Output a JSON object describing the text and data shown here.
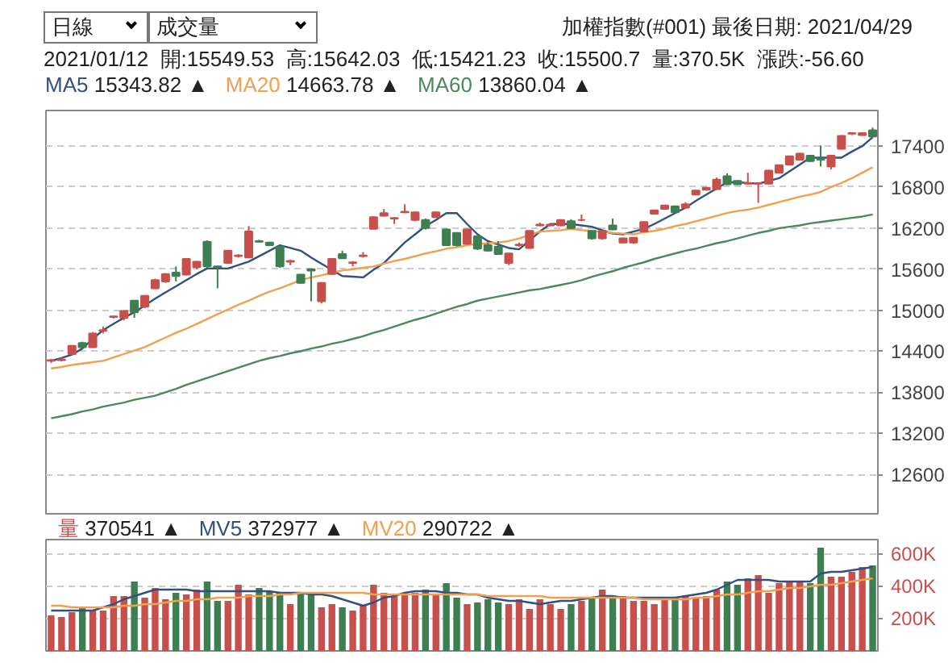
{
  "chart_data": [
    {
      "type": "candlestick",
      "categories": [
        null,
        null,
        null,
        null,
        null,
        null,
        null,
        null,
        null,
        null,
        null,
        null,
        null,
        null,
        null,
        null,
        null,
        null,
        null,
        null,
        null,
        null,
        null,
        null,
        null,
        null,
        null,
        null,
        null,
        null,
        null,
        null,
        null,
        null,
        null,
        null,
        null,
        null,
        null,
        null,
        null,
        null,
        null,
        null,
        null,
        null,
        null,
        null,
        null,
        null,
        null,
        null,
        null,
        null,
        null,
        null,
        null,
        null,
        null,
        null,
        null,
        null,
        null,
        null,
        null,
        null,
        null,
        null,
        null,
        null,
        null,
        null,
        null,
        null,
        null,
        null,
        null,
        null,
        null,
        null
      ],
      "ohlc": [
        [
          14260,
          14290,
          14230,
          14270
        ],
        [
          14270,
          14310,
          14250,
          14280
        ],
        [
          14360,
          14490,
          14350,
          14480
        ],
        [
          14520,
          14540,
          14440,
          14460
        ],
        [
          14460,
          14680,
          14450,
          14660
        ],
        [
          14700,
          14760,
          14660,
          14710
        ],
        [
          14900,
          14920,
          14880,
          14910
        ],
        [
          14890,
          15000,
          14850,
          14990
        ],
        [
          15140,
          15150,
          14890,
          14970
        ],
        [
          15050,
          15220,
          15030,
          15210
        ],
        [
          15320,
          15460,
          15310,
          15440
        ],
        [
          15420,
          15540,
          15400,
          15530
        ],
        [
          15550,
          15640,
          15420,
          15500
        ],
        [
          15520,
          15760,
          15510,
          15750
        ],
        [
          15630,
          15720,
          15600,
          15710
        ],
        [
          16000,
          16020,
          15620,
          15640
        ],
        [
          15640,
          15650,
          15320,
          15630
        ],
        [
          15690,
          15880,
          15680,
          15870
        ],
        [
          15790,
          15820,
          15770,
          15800
        ],
        [
          15770,
          16230,
          15760,
          16150
        ],
        [
          16010,
          16030,
          15990,
          16000
        ],
        [
          15990,
          16000,
          15940,
          15950
        ],
        [
          15930,
          15940,
          15620,
          15640
        ],
        [
          15710,
          15740,
          15660,
          15720
        ],
        [
          15520,
          15530,
          15390,
          15400
        ],
        [
          15600,
          15610,
          15130,
          15580
        ],
        [
          15130,
          15410,
          15100,
          15400
        ],
        [
          15530,
          15760,
          15520,
          15750
        ],
        [
          15820,
          15870,
          15750,
          15760
        ],
        [
          15690,
          15720,
          15640,
          15700
        ],
        [
          15790,
          15850,
          15770,
          15800
        ],
        [
          16190,
          16370,
          16180,
          16360
        ],
        [
          16380,
          16480,
          16370,
          16420
        ],
        [
          16340,
          16360,
          16260,
          16350
        ],
        [
          16430,
          16550,
          16420,
          16440
        ],
        [
          16320,
          16440,
          16300,
          16430
        ],
        [
          16320,
          16340,
          16180,
          16200
        ],
        [
          16360,
          16440,
          16350,
          16430
        ],
        [
          16180,
          16190,
          15940,
          15950
        ],
        [
          16130,
          16140,
          15930,
          15950
        ],
        [
          15970,
          16190,
          15960,
          16180
        ],
        [
          16080,
          16100,
          15880,
          15900
        ],
        [
          15950,
          15990,
          15860,
          15870
        ],
        [
          15930,
          16010,
          15810,
          15820
        ],
        [
          15690,
          15840,
          15660,
          15830
        ],
        [
          15950,
          15990,
          15930,
          15960
        ],
        [
          15910,
          16170,
          15900,
          16160
        ],
        [
          16240,
          16280,
          16230,
          16250
        ],
        [
          16240,
          16270,
          16230,
          16250
        ],
        [
          16240,
          16330,
          16230,
          16320
        ],
        [
          16300,
          16330,
          16190,
          16200
        ],
        [
          16320,
          16400,
          16300,
          16320
        ],
        [
          16160,
          16170,
          16030,
          16050
        ],
        [
          16050,
          16170,
          16030,
          16160
        ],
        [
          16240,
          16340,
          16170,
          16180
        ],
        [
          15990,
          16060,
          15980,
          16050
        ],
        [
          15990,
          16070,
          15970,
          16060
        ],
        [
          16150,
          16300,
          16140,
          16290
        ],
        [
          16410,
          16470,
          16400,
          16460
        ],
        [
          16480,
          16540,
          16470,
          16530
        ],
        [
          16520,
          16530,
          16420,
          16430
        ],
        [
          16500,
          16580,
          16490,
          16550
        ],
        [
          16690,
          16760,
          16680,
          16750
        ],
        [
          16760,
          16800,
          16750,
          16790
        ],
        [
          16770,
          16940,
          16760,
          16910
        ],
        [
          16960,
          17000,
          16830,
          16840
        ],
        [
          16890,
          16900,
          16830,
          16840
        ],
        [
          16850,
          17010,
          16840,
          16860
        ],
        [
          16850,
          16870,
          16570,
          16860
        ],
        [
          16850,
          17050,
          16840,
          17040
        ],
        [
          17010,
          17130,
          17000,
          17120
        ],
        [
          17130,
          17260,
          17120,
          17250
        ],
        [
          17200,
          17300,
          17190,
          17290
        ],
        [
          17260,
          17270,
          17170,
          17180
        ],
        [
          17210,
          17410,
          17100,
          17200
        ],
        [
          17100,
          17270,
          17060,
          17260
        ],
        [
          17360,
          17560,
          17350,
          17550
        ],
        [
          17580,
          17600,
          17560,
          17590
        ],
        [
          17560,
          17600,
          17550,
          17590
        ],
        [
          17630,
          17670,
          17530,
          17540
        ]
      ],
      "series": [
        {
          "name": "MA5",
          "type": "line",
          "color": "#34507f",
          "values": [
            14260,
            14300,
            14350,
            14440,
            14580,
            14710,
            14800,
            14890,
            14970,
            15070,
            15170,
            15260,
            15350,
            15440,
            15530,
            15610,
            15610,
            15610,
            15660,
            15710,
            15790,
            15870,
            15950,
            15910,
            15870,
            15770,
            15680,
            15590,
            15500,
            15490,
            15480,
            15590,
            15690,
            15840,
            15990,
            16110,
            16230,
            16320,
            16420,
            16420,
            16260,
            16110,
            16010,
            15960,
            15910,
            15890,
            16020,
            16150,
            16260,
            16260,
            16260,
            16240,
            16220,
            16170,
            16120,
            16110,
            16150,
            16190,
            16260,
            16340,
            16420,
            16500,
            16600,
            16690,
            16780,
            16870,
            16870,
            16860,
            16850,
            16890,
            16930,
            17030,
            17130,
            17230,
            17230,
            17230,
            17230,
            17320,
            17400,
            17530
          ]
        },
        {
          "name": "MA20",
          "type": "line",
          "color": "#f0a050",
          "values": [
            14150,
            14170,
            14200,
            14220,
            14240,
            14260,
            14310,
            14360,
            14410,
            14460,
            14530,
            14600,
            14670,
            14730,
            14800,
            14870,
            14940,
            15010,
            15080,
            15140,
            15210,
            15270,
            15320,
            15380,
            15440,
            15480,
            15510,
            15550,
            15580,
            15600,
            15620,
            15640,
            15680,
            15720,
            15750,
            15790,
            15830,
            15860,
            15900,
            15920,
            15950,
            15970,
            15980,
            15990,
            16010,
            16050,
            16100,
            16150,
            16160,
            16170,
            16190,
            16170,
            16160,
            16150,
            16130,
            16120,
            16110,
            16140,
            16160,
            16190,
            16230,
            16260,
            16300,
            16340,
            16380,
            16420,
            16450,
            16470,
            16500,
            16540,
            16580,
            16620,
            16660,
            16690,
            16730,
            16800,
            16860,
            16930,
            17010,
            17090
          ]
        },
        {
          "name": "MA60",
          "type": "line",
          "color": "#4a8a5a",
          "values": [
            13420,
            13450,
            13480,
            13520,
            13550,
            13590,
            13620,
            13650,
            13690,
            13720,
            13750,
            13800,
            13850,
            13910,
            13960,
            14010,
            14060,
            14110,
            14160,
            14210,
            14260,
            14300,
            14330,
            14370,
            14400,
            14440,
            14470,
            14510,
            14540,
            14580,
            14620,
            14670,
            14710,
            14760,
            14810,
            14860,
            14900,
            14950,
            15000,
            15050,
            15090,
            15140,
            15170,
            15200,
            15230,
            15260,
            15290,
            15310,
            15340,
            15370,
            15400,
            15440,
            15490,
            15530,
            15570,
            15620,
            15660,
            15700,
            15750,
            15790,
            15830,
            15870,
            15900,
            15940,
            15980,
            16010,
            16050,
            16090,
            16130,
            16160,
            16200,
            16220,
            16240,
            16270,
            16290,
            16310,
            16330,
            16350,
            16370,
            16400
          ]
        }
      ],
      "ylim": [
        12000,
        17920
      ],
      "yticks": [
        12600,
        13200,
        13800,
        14400,
        15000,
        15600,
        16200,
        16800,
        17400
      ],
      "grid": "y",
      "legend": "top left",
      "tick_labels": "y",
      "annotations": [
        "日線",
        "成交量",
        "加權指數(#001)   最後日期: 2021/04/29",
        "2021/01/12  開:15549.53  高:15642.03  低:15421.23  收:15500.7  量:370.5K  漲跌:-56.60",
        "15343.82 ▲",
        "14663.78 ▲",
        "13860.04 ▲"
      ]
    },
    {
      "type": "bar",
      "categories": [
        null,
        null,
        null,
        null,
        null,
        null,
        null,
        null,
        null,
        null,
        null,
        null,
        null,
        null,
        null,
        null,
        null,
        null,
        null,
        null,
        null,
        null,
        null,
        null,
        null,
        null,
        null,
        null,
        null,
        null,
        null,
        null,
        null,
        null,
        null,
        null,
        null,
        null,
        null,
        null,
        null,
        null,
        null,
        null,
        null,
        null,
        null,
        null,
        null,
        null,
        null,
        null,
        null,
        null,
        null,
        null,
        null,
        null,
        null,
        null,
        null,
        null,
        null,
        null,
        null,
        null,
        null,
        null,
        null,
        null,
        null,
        null,
        null,
        null,
        null,
        null,
        null,
        null,
        null,
        null
      ],
      "series": [
        {
          "name": "量",
          "type": "bar",
          "values": [
            220000,
            210000,
            240000,
            270000,
            250000,
            250000,
            340000,
            340000,
            430000,
            330000,
            390000,
            320000,
            360000,
            350000,
            380000,
            430000,
            310000,
            310000,
            410000,
            350000,
            390000,
            370000,
            360000,
            290000,
            360000,
            350000,
            270000,
            290000,
            270000,
            250000,
            280000,
            410000,
            360000,
            340000,
            360000,
            360000,
            380000,
            350000,
            420000,
            330000,
            290000,
            300000,
            320000,
            300000,
            290000,
            320000,
            260000,
            320000,
            290000,
            260000,
            290000,
            310000,
            330000,
            380000,
            340000,
            340000,
            310000,
            310000,
            290000,
            330000,
            330000,
            340000,
            330000,
            340000,
            380000,
            430000,
            410000,
            450000,
            470000,
            360000,
            420000,
            430000,
            430000,
            420000,
            640000,
            460000,
            460000,
            490000,
            520000,
            530000
          ],
          "colors": [
            "#c8504c",
            "#c8504c",
            "#c8504c",
            "#3d7f50",
            "#c8504c",
            "#c8504c",
            "#c8504c",
            "#c8504c",
            "#3d7f50",
            "#c8504c",
            "#c8504c",
            "#c8504c",
            "#3d7f50",
            "#c8504c",
            "#c8504c",
            "#3d7f50",
            "#3d7f50",
            "#c8504c",
            "#c8504c",
            "#c8504c",
            "#3d7f50",
            "#3d7f50",
            "#3d7f50",
            "#c8504c",
            "#3d7f50",
            "#3d7f50",
            "#c8504c",
            "#c8504c",
            "#3d7f50",
            "#c8504c",
            "#c8504c",
            "#c8504c",
            "#c8504c",
            "#c8504c",
            "#c8504c",
            "#c8504c",
            "#3d7f50",
            "#c8504c",
            "#3d7f50",
            "#3d7f50",
            "#c8504c",
            "#3d7f50",
            "#3d7f50",
            "#3d7f50",
            "#c8504c",
            "#c8504c",
            "#c8504c",
            "#c8504c",
            "#c8504c",
            "#c8504c",
            "#3d7f50",
            "#c8504c",
            "#3d7f50",
            "#c8504c",
            "#3d7f50",
            "#c8504c",
            "#c8504c",
            "#c8504c",
            "#c8504c",
            "#c8504c",
            "#3d7f50",
            "#c8504c",
            "#c8504c",
            "#c8504c",
            "#c8504c",
            "#3d7f50",
            "#3d7f50",
            "#c8504c",
            "#c8504c",
            "#c8504c",
            "#c8504c",
            "#c8504c",
            "#c8504c",
            "#3d7f50",
            "#3d7f50",
            "#c8504c",
            "#c8504c",
            "#c8504c",
            "#c8504c",
            "#3d7f50"
          ]
        },
        {
          "name": "MV5",
          "type": "line",
          "color": "#34507f",
          "values": [
            250000,
            250000,
            250000,
            250000,
            250000,
            270000,
            290000,
            320000,
            340000,
            360000,
            380000,
            380000,
            380000,
            380000,
            370000,
            370000,
            370000,
            370000,
            370000,
            370000,
            370000,
            370000,
            360000,
            360000,
            360000,
            350000,
            350000,
            340000,
            320000,
            300000,
            280000,
            300000,
            330000,
            340000,
            360000,
            370000,
            370000,
            370000,
            360000,
            360000,
            350000,
            350000,
            330000,
            320000,
            310000,
            310000,
            300000,
            290000,
            300000,
            310000,
            310000,
            320000,
            330000,
            340000,
            340000,
            330000,
            330000,
            330000,
            330000,
            330000,
            330000,
            340000,
            350000,
            360000,
            380000,
            410000,
            440000,
            440000,
            440000,
            440000,
            430000,
            430000,
            430000,
            430000,
            480000,
            490000,
            490000,
            500000,
            510000,
            520000
          ]
        },
        {
          "name": "MV20",
          "type": "line",
          "color": "#f0a050",
          "values": [
            280000,
            280000,
            270000,
            270000,
            270000,
            270000,
            270000,
            280000,
            280000,
            290000,
            290000,
            300000,
            310000,
            310000,
            320000,
            320000,
            330000,
            330000,
            330000,
            340000,
            340000,
            340000,
            350000,
            350000,
            360000,
            360000,
            360000,
            360000,
            360000,
            360000,
            360000,
            350000,
            350000,
            350000,
            350000,
            350000,
            350000,
            350000,
            350000,
            350000,
            350000,
            350000,
            340000,
            340000,
            340000,
            340000,
            340000,
            340000,
            330000,
            330000,
            330000,
            330000,
            330000,
            330000,
            330000,
            330000,
            330000,
            320000,
            320000,
            320000,
            320000,
            320000,
            330000,
            330000,
            340000,
            350000,
            350000,
            360000,
            370000,
            370000,
            380000,
            390000,
            390000,
            400000,
            410000,
            410000,
            420000,
            430000,
            440000,
            450000
          ]
        }
      ],
      "ylim": [
        0,
        690000
      ],
      "yticks": [
        {
          "value": 200000,
          "label": "200K"
        },
        {
          "value": 400000,
          "label": "400K"
        },
        {
          "value": 600000,
          "label": "600K"
        }
      ],
      "grid": "y",
      "legend": "top left",
      "tick_labels": "y",
      "annotations": [
        "370541 ▲",
        "372977 ▲",
        "290722 ▲"
      ]
    }
  ]
}
